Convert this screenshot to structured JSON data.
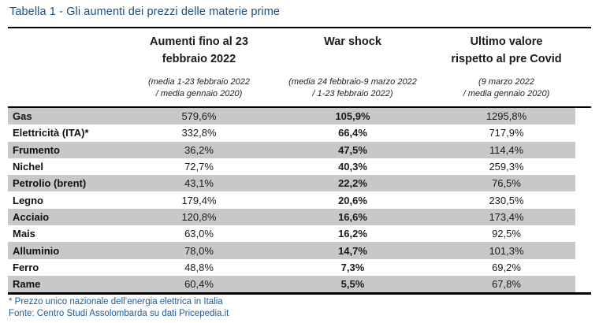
{
  "title": "Tabella 1 - Gli aumenti dei prezzi delle materie prime",
  "colors": {
    "title_blue": "#1F4E79",
    "footer_blue": "#1F5C99",
    "row_gray": "#C8C8C8",
    "rule_black": "#000000"
  },
  "header": {
    "columns": [
      {
        "label": "Aumenti fino al 23\nfebbraio 2022",
        "sub": "(media 1-23 febbraio 2022\n/ media gennaio 2020)"
      },
      {
        "label": "War shock",
        "sub": "(media 24 febbraio-9 marzo 2022\n/ 1-23 febbraio 2022)"
      },
      {
        "label": "Ultimo valore\nrispetto al pre Covid",
        "sub": "(9 marzo 2022\n/ media gennaio 2020)"
      }
    ]
  },
  "footnotes": {
    "asterisk": "* Prezzo unico nazionale dell’energia elettrica in Italia",
    "source": "Fonte: Centro Studi Assolombarda su dati Pricepedia.it"
  },
  "chart_data": {
    "type": "table",
    "title": "Tabella 1 - Gli aumenti dei prezzi delle materie prime",
    "columns": [
      "Aumenti fino al 23 febbraio 2022",
      "War shock",
      "Ultimo valore rispetto al pre Covid"
    ],
    "column_subtitles": [
      "(media 1-23 febbraio 2022 / media gennaio 2020)",
      "(media 24 febbraio-9 marzo 2022 / 1-23 febbraio 2022)",
      "(9 marzo 2022 / media gennaio 2020)"
    ],
    "rows": [
      {
        "label": "Gas",
        "values": [
          "579,6%",
          "105,9%",
          "1295,8%"
        ]
      },
      {
        "label": "Elettricità (ITA)*",
        "values": [
          "332,8%",
          "66,4%",
          "717,9%"
        ]
      },
      {
        "label": "Frumento",
        "values": [
          "36,2%",
          "47,5%",
          "114,4%"
        ]
      },
      {
        "label": "Nichel",
        "values": [
          "72,7%",
          "40,3%",
          "259,3%"
        ]
      },
      {
        "label": "Petrolio (brent)",
        "values": [
          "43,1%",
          "22,2%",
          "76,5%"
        ]
      },
      {
        "label": "Legno",
        "values": [
          "179,4%",
          "20,6%",
          "230,5%"
        ]
      },
      {
        "label": "Acciaio",
        "values": [
          "120,8%",
          "16,6%",
          "173,4%"
        ]
      },
      {
        "label": "Mais",
        "values": [
          "63,0%",
          "16,2%",
          "92,5%"
        ]
      },
      {
        "label": "Alluminio",
        "values": [
          "78,0%",
          "14,7%",
          "101,3%"
        ]
      },
      {
        "label": "Ferro",
        "values": [
          "48,8%",
          "7,3%",
          "69,2%"
        ]
      },
      {
        "label": "Rame",
        "values": [
          "60,4%",
          "5,5%",
          "67,8%"
        ]
      }
    ],
    "value_format": "percent, Italian decimal comma",
    "shading": "odd rows gray (#C8C8C8), even rows white",
    "emphasis": "row labels bold, War shock column bold"
  }
}
